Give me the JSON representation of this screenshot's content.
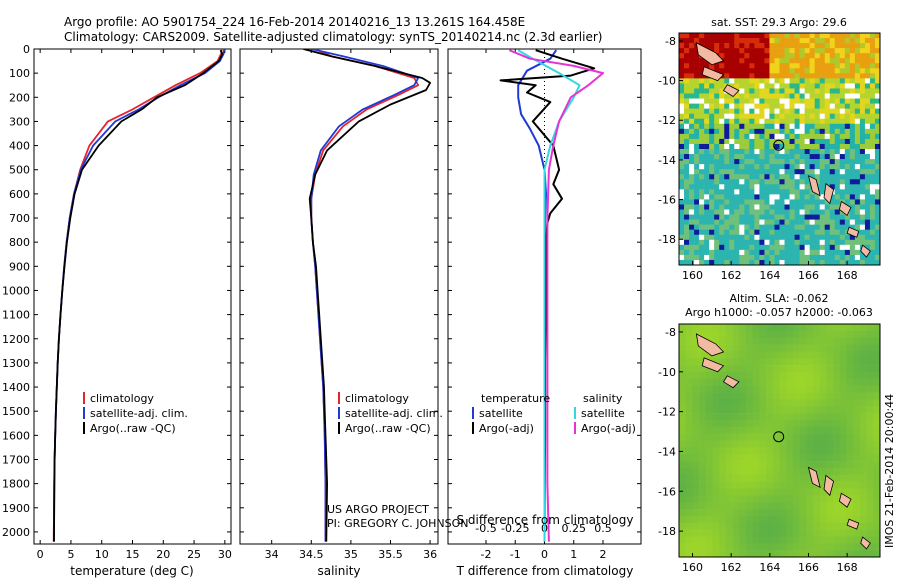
{
  "header": {
    "title_line1": "Argo profile: AO 5901754_224 16-Feb-2014 20140216_13 13.261S 164.458E",
    "title_line2": "Climatology: CARS2009. Satellite-adjusted climatology: synTS_20140214.nc (2.3d earlier)"
  },
  "colors": {
    "climatology": "#e8232a",
    "satellite": "#1f3ad6",
    "argo": "#000000",
    "salinity_sat": "#35d6e0",
    "salinity_argo": "#e633d6"
  },
  "legend": {
    "climatology": "climatology",
    "satellite_adj": "satellite-adj. clim.",
    "argo_raw": "Argo(..raw -QC)",
    "temperature": "temperature",
    "salinity": "salinity",
    "satellite": "satellite",
    "argo_adj": "Argo(-adj)"
  },
  "credit": {
    "line1": "US ARGO PROJECT",
    "line2": "PI: GREGORY C. JOHNSON"
  },
  "footer": "IMOS 21-Feb-2014 20:00:44",
  "chart_data": [
    {
      "id": "temperature",
      "type": "line",
      "xlabel": "temperature (deg C)",
      "ylabel": "",
      "xlim": [
        -1,
        31
      ],
      "ylim": [
        2050,
        0
      ],
      "xticks": [
        0,
        5,
        10,
        15,
        20,
        25,
        30
      ],
      "yticks": [
        0,
        100,
        200,
        300,
        400,
        500,
        600,
        700,
        800,
        900,
        1000,
        1100,
        1200,
        1300,
        1400,
        1500,
        1600,
        1700,
        1800,
        1900,
        2000
      ],
      "series": [
        {
          "name": "climatology",
          "color": "#e8232a",
          "x": [
            29.5,
            29.4,
            28.8,
            26.0,
            22.0,
            18.5,
            15.0,
            11.0,
            8.0,
            6.5,
            5.5,
            4.8,
            4.3,
            3.9,
            3.6,
            3.3,
            3.05,
            2.85,
            2.7,
            2.55,
            2.45,
            2.35,
            2.3,
            2.2
          ],
          "y": [
            0,
            20,
            50,
            100,
            150,
            200,
            250,
            300,
            400,
            500,
            600,
            700,
            800,
            900,
            1000,
            1100,
            1200,
            1300,
            1400,
            1500,
            1600,
            1700,
            1800,
            2040
          ]
        },
        {
          "name": "satellite-adj. clim.",
          "color": "#1f3ad6",
          "x": [
            29.9,
            29.8,
            29.2,
            26.8,
            22.8,
            19.2,
            16.0,
            12.2,
            8.6,
            6.6,
            5.5,
            4.8,
            4.3,
            3.9,
            3.6,
            3.3,
            3.05,
            2.85,
            2.7,
            2.55,
            2.45,
            2.35,
            2.3,
            2.25
          ],
          "y": [
            0,
            20,
            50,
            100,
            150,
            200,
            250,
            300,
            400,
            500,
            600,
            700,
            800,
            900,
            1000,
            1100,
            1200,
            1300,
            1400,
            1500,
            1600,
            1700,
            1800,
            2040
          ]
        },
        {
          "name": "Argo(..raw -QC)",
          "color": "#000000",
          "x": [
            29.3,
            29.6,
            29.0,
            26.5,
            23.5,
            19.0,
            16.5,
            13.2,
            9.5,
            6.8,
            5.6,
            4.9,
            4.35,
            3.95,
            3.6,
            3.3,
            3.05,
            2.85,
            2.7,
            2.55,
            2.45,
            2.35,
            2.3,
            2.25
          ],
          "y": [
            5,
            20,
            50,
            100,
            150,
            200,
            250,
            300,
            400,
            500,
            600,
            700,
            800,
            900,
            1000,
            1100,
            1200,
            1300,
            1400,
            1500,
            1600,
            1700,
            1800,
            2040
          ]
        }
      ]
    },
    {
      "id": "salinity",
      "type": "line",
      "xlabel": "salinity",
      "ylabel": "",
      "xlim": [
        33.6,
        36.1
      ],
      "ylim": [
        2050,
        0
      ],
      "xticks": [
        34,
        34.5,
        35,
        35.5,
        36
      ],
      "series": [
        {
          "name": "climatology",
          "color": "#e8232a",
          "x": [
            34.55,
            34.75,
            35.3,
            35.8,
            35.85,
            35.6,
            35.2,
            34.9,
            34.65,
            34.55,
            34.5,
            34.5,
            34.52,
            34.55,
            34.57,
            34.59,
            34.61,
            34.63,
            34.65,
            34.66,
            34.67,
            34.68,
            34.68
          ],
          "y": [
            0,
            30,
            70,
            120,
            150,
            190,
            250,
            320,
            420,
            520,
            620,
            700,
            800,
            900,
            1000,
            1100,
            1200,
            1300,
            1400,
            1500,
            1600,
            1800,
            2040
          ]
        },
        {
          "name": "satellite-adj. clim.",
          "color": "#1f3ad6",
          "x": [
            34.5,
            34.9,
            35.4,
            35.85,
            35.8,
            35.55,
            35.15,
            34.85,
            34.62,
            34.53,
            34.5,
            34.5,
            34.52,
            34.55,
            34.57,
            34.59,
            34.61,
            34.63,
            34.65,
            34.66,
            34.67,
            34.68,
            34.68
          ],
          "y": [
            0,
            30,
            70,
            120,
            150,
            190,
            250,
            320,
            420,
            520,
            620,
            700,
            800,
            900,
            1000,
            1100,
            1200,
            1300,
            1400,
            1500,
            1600,
            1800,
            2040
          ]
        },
        {
          "name": "Argo(..raw -QC)",
          "color": "#000000",
          "x": [
            34.4,
            34.75,
            35.3,
            35.9,
            36.0,
            35.95,
            35.5,
            35.1,
            34.7,
            34.55,
            34.48,
            34.5,
            34.52,
            34.56,
            34.58,
            34.6,
            34.62,
            34.64,
            34.66,
            34.67,
            34.68,
            34.7,
            34.69
          ],
          "y": [
            0,
            30,
            70,
            120,
            140,
            170,
            230,
            300,
            420,
            520,
            620,
            700,
            800,
            900,
            1000,
            1100,
            1200,
            1300,
            1400,
            1500,
            1600,
            1800,
            2040
          ]
        }
      ]
    },
    {
      "id": "difference",
      "type": "line",
      "xlabel": "T difference from climatology",
      "xlabel_top": "S difference from climatology",
      "xlim": [
        -3.3,
        3.3
      ],
      "ylim": [
        2050,
        0
      ],
      "xticks": [
        -2,
        -1,
        0,
        1,
        2
      ],
      "xticks_s": [
        -0.5,
        -0.25,
        0,
        0.25,
        0.5
      ],
      "xticks_s_labels": [
        "-0.5",
        "-0.25",
        "0",
        "0.25",
        "0.5"
      ],
      "s_scale": 4,
      "series": [
        {
          "name": "temperature satellite",
          "color": "#1f3ad6",
          "x": [
            0.4,
            0.2,
            -0.6,
            -0.9,
            -0.9,
            -0.8,
            -0.5,
            -0.2,
            0.0,
            0.05,
            0.02,
            0.0,
            0.0,
            0.0,
            0.0
          ],
          "y": [
            5,
            40,
            90,
            150,
            200,
            270,
            330,
            400,
            500,
            600,
            700,
            900,
            1200,
            1600,
            2040
          ]
        },
        {
          "name": "temperature Argo(-adj)",
          "color": "#000000",
          "x": [
            -0.3,
            0.6,
            1.7,
            0.9,
            -1.5,
            -0.3,
            -0.6,
            0.2,
            -0.4,
            0.3,
            0.5,
            0.3,
            0.6,
            0.2,
            0.1,
            0.05,
            0.05,
            0.02,
            0.02,
            0.0
          ],
          "y": [
            5,
            40,
            80,
            110,
            130,
            150,
            180,
            220,
            300,
            400,
            500,
            560,
            620,
            680,
            720,
            800,
            1000,
            1300,
            1600,
            2040
          ]
        },
        {
          "name": "salinity satellite",
          "color": "#35d6e0",
          "x": [
            -0.9,
            -0.4,
            0.5,
            1.2,
            1.0,
            0.5,
            0.2,
            0.0,
            0.0,
            0.0,
            0.0
          ],
          "y": [
            5,
            40,
            100,
            150,
            200,
            300,
            400,
            500,
            700,
            1200,
            2040
          ]
        },
        {
          "name": "salinity Argo(-adj)",
          "color": "#e633d6",
          "x": [
            -1.2,
            -0.5,
            1.0,
            2.0,
            1.5,
            0.9,
            0.5,
            0.3,
            0.15,
            0.1,
            0.1,
            0.1,
            0.1,
            0.15
          ],
          "y": [
            5,
            40,
            70,
            100,
            150,
            200,
            300,
            400,
            500,
            700,
            1000,
            1400,
            1800,
            2040
          ]
        }
      ]
    },
    {
      "id": "sst_map",
      "type": "heatmap",
      "title": "sat. SST: 29.3 Argo: 29.6",
      "xlim": [
        159.3,
        169.7
      ],
      "ylim": [
        -19.3,
        -7.6
      ],
      "xticks": [
        160,
        162,
        164,
        166,
        168
      ],
      "yticks": [
        -8,
        -10,
        -12,
        -14,
        -16,
        -18
      ],
      "marker": {
        "lon": 164.458,
        "lat": -13.261
      }
    },
    {
      "id": "sla_map",
      "type": "heatmap",
      "title": "Altim. SLA: -0.062",
      "subtitle": "Argo h1000: -0.057 h2000: -0.063",
      "xlim": [
        159.3,
        169.7
      ],
      "ylim": [
        -19.3,
        -7.6
      ],
      "xticks": [
        160,
        162,
        164,
        166,
        168
      ],
      "yticks": [
        -8,
        -10,
        -12,
        -14,
        -16,
        -18
      ],
      "marker": {
        "lon": 164.458,
        "lat": -13.261
      }
    }
  ]
}
